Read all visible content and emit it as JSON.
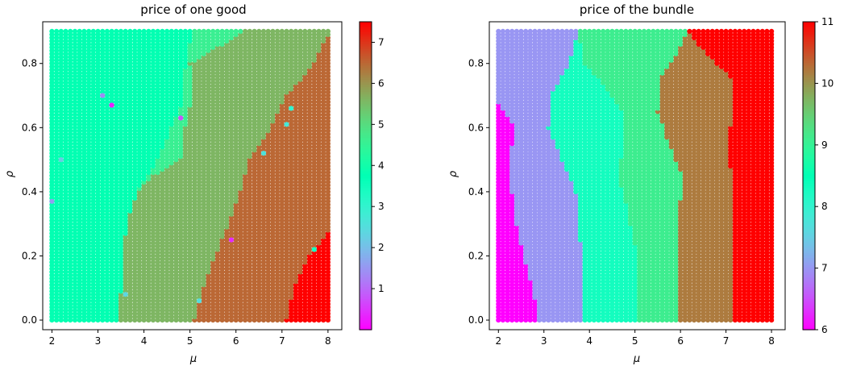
{
  "chart_data": [
    {
      "type": "heatmap",
      "title": "price of one good",
      "xlabel": "μ",
      "ylabel": "ρ",
      "xlim": [
        1.8,
        8.3
      ],
      "ylim": [
        -0.03,
        0.93
      ],
      "xticks": [
        "2",
        "3",
        "4",
        "5",
        "6",
        "7",
        "8"
      ],
      "yticks": [
        "0.0",
        "0.2",
        "0.4",
        "0.6",
        "0.8"
      ],
      "x_range": [
        2.0,
        8.0
      ],
      "y_range": [
        0.0,
        0.9
      ],
      "colorbar": {
        "min": 0.0,
        "max": 7.5,
        "colormap": "rainbow",
        "ticks": [
          "1",
          "2",
          "3",
          "4",
          "5",
          "6",
          "7"
        ]
      },
      "regions": [
        {
          "value": 3.8,
          "description": "upper-left region",
          "boundary_x": [
            [
              0.0,
              3.45
            ],
            [
              0.3,
              3.62
            ],
            [
              0.4,
              3.85
            ],
            [
              0.5,
              4.3
            ],
            [
              0.6,
              4.6
            ],
            [
              0.7,
              4.9
            ],
            [
              0.78,
              4.9
            ],
            [
              0.9,
              5.05
            ]
          ]
        },
        {
          "value": 4.6,
          "boundary_x": [
            [
              0.0,
              3.45
            ],
            [
              0.3,
              3.62
            ],
            [
              0.4,
              3.85
            ],
            [
              0.45,
              4.2
            ],
            [
              0.5,
              4.8
            ],
            [
              0.6,
              4.9
            ],
            [
              0.7,
              5.05
            ],
            [
              0.8,
              5.0
            ],
            [
              0.9,
              6.2
            ]
          ]
        },
        {
          "value": 5.6,
          "boundary_x": [
            [
              0.0,
              5.1
            ],
            [
              0.1,
              5.3
            ],
            [
              0.2,
              5.55
            ],
            [
              0.3,
              5.85
            ],
            [
              0.4,
              6.1
            ],
            [
              0.5,
              6.3
            ],
            [
              0.6,
              6.75
            ],
            [
              0.7,
              7.1
            ],
            [
              0.78,
              7.6
            ],
            [
              0.9,
              8.05
            ]
          ]
        },
        {
          "value": 6.5,
          "boundary_x": [
            [
              0.0,
              7.1
            ],
            [
              0.1,
              7.25
            ],
            [
              0.2,
              7.6
            ],
            [
              0.28,
              8.05
            ]
          ]
        },
        {
          "value": 7.5
        }
      ],
      "outlier_points": [
        {
          "x": 2.0,
          "y": 0.37,
          "value": 1.6
        },
        {
          "x": 2.2,
          "y": 0.5,
          "value": 2.2
        },
        {
          "x": 3.1,
          "y": 0.7,
          "value": 1.4
        },
        {
          "x": 3.3,
          "y": 0.67,
          "value": 0.3
        },
        {
          "x": 4.8,
          "y": 0.63,
          "value": 0.8
        },
        {
          "x": 3.6,
          "y": 0.08,
          "value": 2.4
        },
        {
          "x": 5.2,
          "y": 0.06,
          "value": 2.5
        },
        {
          "x": 5.9,
          "y": 0.25,
          "value": 0.4
        },
        {
          "x": 6.6,
          "y": 0.52,
          "value": 2.6
        },
        {
          "x": 7.1,
          "y": 0.61,
          "value": 2.7
        },
        {
          "x": 7.2,
          "y": 0.66,
          "value": 3.0
        },
        {
          "x": 7.7,
          "y": 0.22,
          "value": 3.4
        }
      ]
    },
    {
      "type": "heatmap",
      "title": "price of the bundle",
      "xlabel": "μ",
      "ylabel": "ρ",
      "xlim": [
        1.8,
        8.3
      ],
      "ylim": [
        -0.03,
        0.93
      ],
      "xticks": [
        "2",
        "3",
        "4",
        "5",
        "6",
        "7",
        "8"
      ],
      "yticks": [
        "0.0",
        "0.2",
        "0.4",
        "0.6",
        "0.8"
      ],
      "x_range": [
        2.0,
        8.0
      ],
      "y_range": [
        0.0,
        0.9
      ],
      "colorbar": {
        "min": 6.0,
        "max": 11.0,
        "colormap": "rainbow",
        "ticks": [
          "6",
          "7",
          "8",
          "9",
          "10",
          "11"
        ]
      },
      "regions": [
        {
          "value": 6.0,
          "boundary_x": [
            [
              0.0,
              2.9
            ],
            [
              0.1,
              2.75
            ],
            [
              0.2,
              2.55
            ],
            [
              0.3,
              2.4
            ],
            [
              0.4,
              2.3
            ],
            [
              0.5,
              2.25
            ],
            [
              0.6,
              2.35
            ],
            [
              0.68,
              2.0
            ]
          ]
        },
        {
          "value": 7.0,
          "boundary_x": [
            [
              0.0,
              3.85
            ],
            [
              0.2,
              3.85
            ],
            [
              0.3,
              3.75
            ],
            [
              0.4,
              3.7
            ],
            [
              0.5,
              3.4
            ],
            [
              0.6,
              3.1
            ],
            [
              0.7,
              3.15
            ],
            [
              0.8,
              3.55
            ],
            [
              0.9,
              3.75
            ]
          ]
        },
        {
          "value": 8.3,
          "boundary_x": [
            [
              0.0,
              5.05
            ],
            [
              0.2,
              5.05
            ],
            [
              0.3,
              4.9
            ],
            [
              0.45,
              4.65
            ],
            [
              0.55,
              4.75
            ],
            [
              0.65,
              4.75
            ],
            [
              0.72,
              4.4
            ],
            [
              0.8,
              3.9
            ],
            [
              0.9,
              3.75
            ]
          ]
        },
        {
          "value": 9.1,
          "boundary_x": [
            [
              0.0,
              5.95
            ],
            [
              0.3,
              5.95
            ],
            [
              0.45,
              6.05
            ],
            [
              0.55,
              5.75
            ],
            [
              0.65,
              5.5
            ],
            [
              0.75,
              5.55
            ],
            [
              0.85,
              6.0
            ],
            [
              0.9,
              6.15
            ]
          ]
        },
        {
          "value": 10.2,
          "boundary_x": [
            [
              0.0,
              7.15
            ],
            [
              0.4,
              7.15
            ],
            [
              0.55,
              7.05
            ],
            [
              0.65,
              7.15
            ],
            [
              0.75,
              7.15
            ],
            [
              0.8,
              6.8
            ],
            [
              0.85,
              6.45
            ],
            [
              0.9,
              6.15
            ]
          ]
        },
        {
          "value": 11.0
        }
      ]
    }
  ]
}
